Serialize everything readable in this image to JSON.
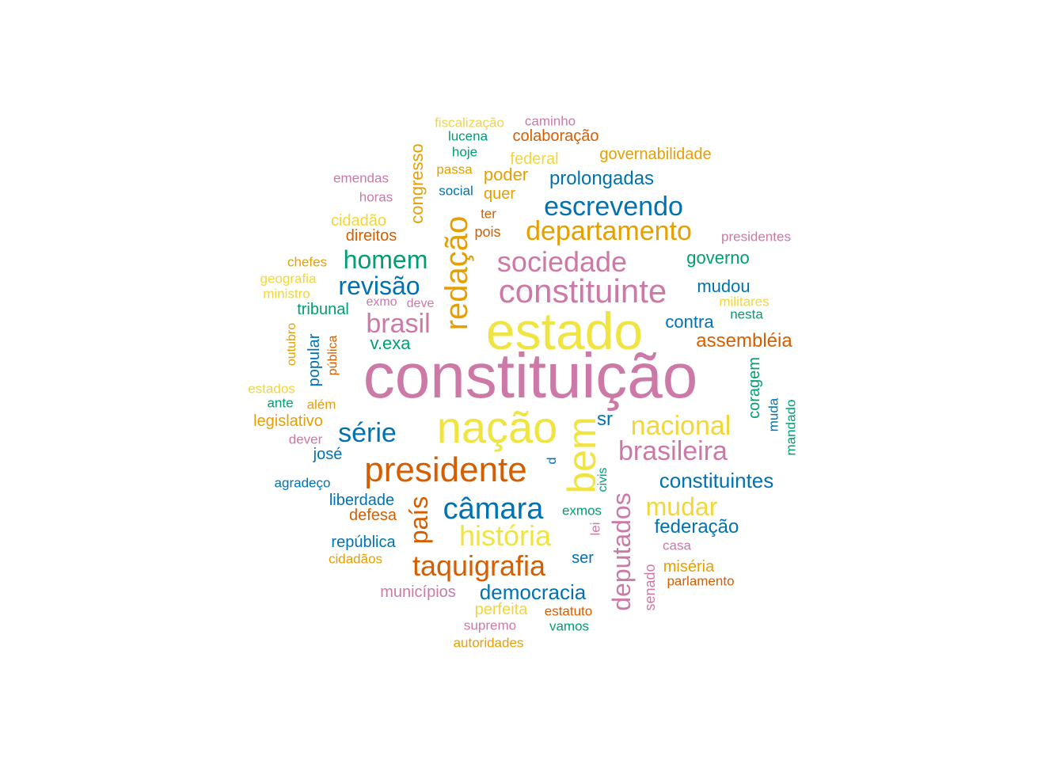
{
  "palette": {
    "pink": "#CC79A7",
    "yellow": "#F0E442",
    "vermillion": "#D55E00",
    "blue": "#0072B2",
    "orange": "#E69F00",
    "green": "#009E73",
    "light_yellow": "#F2D63A"
  },
  "words": [
    {
      "id": "w1",
      "text": "constituição"
    },
    {
      "id": "w2",
      "text": "estado"
    },
    {
      "id": "w3",
      "text": "nação"
    },
    {
      "id": "w4",
      "text": "bem"
    },
    {
      "id": "w5",
      "text": "presidente"
    },
    {
      "id": "w6",
      "text": "redação"
    },
    {
      "id": "w7",
      "text": "constituinte"
    },
    {
      "id": "w8",
      "text": "sociedade"
    },
    {
      "id": "w9",
      "text": "departamento"
    },
    {
      "id": "w10",
      "text": "escrevendo"
    },
    {
      "id": "w11",
      "text": "brasileira"
    },
    {
      "id": "w12",
      "text": "nacional"
    },
    {
      "id": "w13",
      "text": "câmara"
    },
    {
      "id": "w14",
      "text": "história"
    },
    {
      "id": "w15",
      "text": "taquigrafia"
    },
    {
      "id": "w16",
      "text": "deputados"
    },
    {
      "id": "w17",
      "text": "mudar"
    },
    {
      "id": "w18",
      "text": "constituintes"
    },
    {
      "id": "w19",
      "text": "brasil"
    },
    {
      "id": "w20",
      "text": "revisão"
    },
    {
      "id": "w21",
      "text": "homem"
    },
    {
      "id": "w22",
      "text": "série"
    },
    {
      "id": "w23",
      "text": "país"
    },
    {
      "id": "w24",
      "text": "assembléia"
    },
    {
      "id": "w25",
      "text": "federação"
    },
    {
      "id": "w26",
      "text": "democracia"
    },
    {
      "id": "w27",
      "text": "prolongadas"
    },
    {
      "id": "w28",
      "text": "governo"
    },
    {
      "id": "w29",
      "text": "mudou"
    },
    {
      "id": "w30",
      "text": "contra"
    },
    {
      "id": "w31",
      "text": "v.exa"
    },
    {
      "id": "w32",
      "text": "congresso"
    },
    {
      "id": "w33",
      "text": "poder"
    },
    {
      "id": "w34",
      "text": "federal"
    },
    {
      "id": "w35",
      "text": "quer"
    },
    {
      "id": "w36",
      "text": "república"
    },
    {
      "id": "w37",
      "text": "liberdade"
    },
    {
      "id": "w38",
      "text": "defesa"
    },
    {
      "id": "w39",
      "text": "legislativo"
    },
    {
      "id": "w40",
      "text": "tribunal"
    },
    {
      "id": "w41",
      "text": "popular"
    },
    {
      "id": "w42",
      "text": "cidadão"
    },
    {
      "id": "w43",
      "text": "direitos"
    },
    {
      "id": "w44",
      "text": "governabilidade"
    },
    {
      "id": "w45",
      "text": "colaboração"
    },
    {
      "id": "w46",
      "text": "fiscalização"
    },
    {
      "id": "w47",
      "text": "caminho"
    },
    {
      "id": "w48",
      "text": "lucena"
    },
    {
      "id": "w49",
      "text": "hoje"
    },
    {
      "id": "w50",
      "text": "passa"
    },
    {
      "id": "w51",
      "text": "social"
    },
    {
      "id": "w52",
      "text": "emendas"
    },
    {
      "id": "w53",
      "text": "horas"
    },
    {
      "id": "w54",
      "text": "ter"
    },
    {
      "id": "w55",
      "text": "pois"
    },
    {
      "id": "w56",
      "text": "presidentes"
    },
    {
      "id": "w57",
      "text": "chefes"
    },
    {
      "id": "w58",
      "text": "geografia"
    },
    {
      "id": "w59",
      "text": "ministro"
    },
    {
      "id": "w60",
      "text": "exmo"
    },
    {
      "id": "w61",
      "text": "deve"
    },
    {
      "id": "w62",
      "text": "militares"
    },
    {
      "id": "w63",
      "text": "nesta"
    },
    {
      "id": "w64",
      "text": "outubro"
    },
    {
      "id": "w65",
      "text": "pública"
    },
    {
      "id": "w66",
      "text": "estados"
    },
    {
      "id": "w67",
      "text": "ante"
    },
    {
      "id": "w68",
      "text": "além"
    },
    {
      "id": "w69",
      "text": "coragem"
    },
    {
      "id": "w70",
      "text": "muda"
    },
    {
      "id": "w71",
      "text": "mandado"
    },
    {
      "id": "w72",
      "text": "sr"
    },
    {
      "id": "w73",
      "text": "dever"
    },
    {
      "id": "w74",
      "text": "josé"
    },
    {
      "id": "w75",
      "text": "agradeço"
    },
    {
      "id": "w76",
      "text": "d"
    },
    {
      "id": "w77",
      "text": "civis"
    },
    {
      "id": "w78",
      "text": "exmos"
    },
    {
      "id": "w79",
      "text": "lei"
    },
    {
      "id": "w80",
      "text": "casa"
    },
    {
      "id": "w81",
      "text": "cidadãos"
    },
    {
      "id": "w82",
      "text": "ser"
    },
    {
      "id": "w83",
      "text": "miséria"
    },
    {
      "id": "w84",
      "text": "parlamento"
    },
    {
      "id": "w85",
      "text": "senado"
    },
    {
      "id": "w86",
      "text": "municípios"
    },
    {
      "id": "w87",
      "text": "perfeita"
    },
    {
      "id": "w88",
      "text": "estatuto"
    },
    {
      "id": "w89",
      "text": "supremo"
    },
    {
      "id": "w90",
      "text": "vamos"
    },
    {
      "id": "w91",
      "text": "autoridades"
    }
  ]
}
